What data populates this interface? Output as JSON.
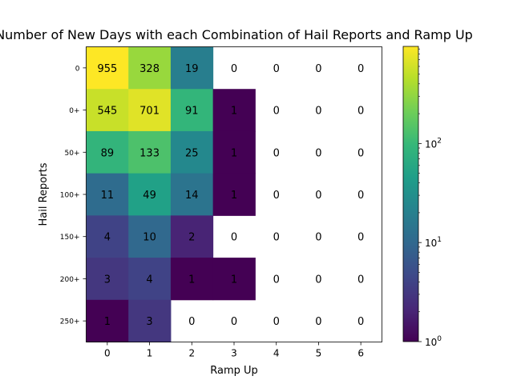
{
  "chart_data": {
    "type": "heatmap",
    "title": "Number of New Days with each Combination of Hail Reports and Ramp Up",
    "xlabel": "Ramp Up",
    "ylabel": "Hail Reports",
    "x_categories": [
      "0",
      "1",
      "2",
      "3",
      "4",
      "5",
      "6"
    ],
    "y_categories": [
      "0",
      "0+",
      "50+",
      "100+",
      "150+",
      "200+",
      "250+"
    ],
    "values": [
      [
        955,
        328,
        19,
        0,
        0,
        0,
        0
      ],
      [
        545,
        701,
        91,
        1,
        0,
        0,
        0
      ],
      [
        89,
        133,
        25,
        1,
        0,
        0,
        0
      ],
      [
        11,
        49,
        14,
        1,
        0,
        0,
        0
      ],
      [
        4,
        10,
        2,
        0,
        0,
        0,
        0
      ],
      [
        3,
        4,
        1,
        1,
        0,
        0,
        0
      ],
      [
        1,
        3,
        0,
        0,
        0,
        0,
        0
      ]
    ],
    "colorscale": "viridis",
    "color_scale_type": "log",
    "zero_cells": "blank (white)",
    "colorbar": {
      "range": [
        1,
        955
      ],
      "tick_labels": [
        "10^0",
        "10^1",
        "10^2"
      ],
      "tick_values": [
        1,
        10,
        100
      ]
    },
    "grid": false
  }
}
